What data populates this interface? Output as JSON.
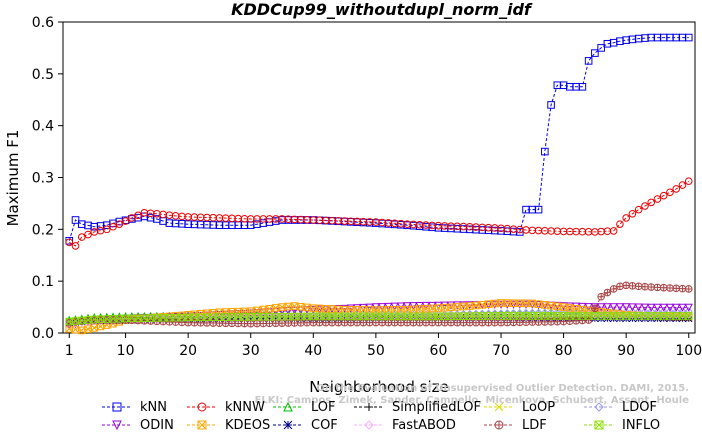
{
  "chart_data": {
    "type": "line",
    "title": "KDDCup99_withoutdupl_norm_idf",
    "xlabel": "Neighborhood size",
    "ylabel": "Maximum F1",
    "xlim": [
      0,
      101
    ],
    "ylim": [
      0,
      0.6
    ],
    "x_ticks": [
      "1",
      "10",
      "20",
      "30",
      "40",
      "50",
      "60",
      "70",
      "80",
      "90",
      "100"
    ],
    "y_ticks": [
      "0.0",
      "0.1",
      "0.2",
      "0.3",
      "0.4",
      "0.5",
      "0.6"
    ],
    "watermark": [
      "ELKI: Campos, Zimek, Sander, Campello, Micenkova, Schubert, Assent, Houle",
      "On the Evaluation of Unsupervised Outlier Detection. DAMI, 2015."
    ],
    "series": [
      {
        "name": "kNN",
        "color": "#0000ee",
        "marker": "square",
        "points": [
          [
            1,
            0.178
          ],
          [
            2,
            0.218
          ],
          [
            3,
            0.21
          ],
          [
            5,
            0.205
          ],
          [
            7,
            0.208
          ],
          [
            9,
            0.215
          ],
          [
            11,
            0.22
          ],
          [
            13,
            0.225
          ],
          [
            15,
            0.22
          ],
          [
            17,
            0.212
          ],
          [
            20,
            0.21
          ],
          [
            25,
            0.208
          ],
          [
            30,
            0.208
          ],
          [
            32,
            0.212
          ],
          [
            35,
            0.218
          ],
          [
            40,
            0.218
          ],
          [
            45,
            0.215
          ],
          [
            50,
            0.212
          ],
          [
            55,
            0.208
          ],
          [
            60,
            0.203
          ],
          [
            65,
            0.2
          ],
          [
            70,
            0.197
          ],
          [
            73,
            0.195
          ],
          [
            74,
            0.238
          ],
          [
            76,
            0.238
          ],
          [
            77,
            0.35
          ],
          [
            78,
            0.44
          ],
          [
            79,
            0.478
          ],
          [
            80,
            0.478
          ],
          [
            81,
            0.475
          ],
          [
            83,
            0.475
          ],
          [
            84,
            0.525
          ],
          [
            85,
            0.54
          ],
          [
            86,
            0.55
          ],
          [
            87,
            0.558
          ],
          [
            88,
            0.56
          ],
          [
            89,
            0.563
          ],
          [
            90,
            0.565
          ],
          [
            92,
            0.568
          ],
          [
            94,
            0.57
          ],
          [
            96,
            0.57
          ],
          [
            100,
            0.57
          ]
        ]
      },
      {
        "name": "kNNW",
        "color": "#ee0000",
        "marker": "circle",
        "points": [
          [
            1,
            0.175
          ],
          [
            2,
            0.168
          ],
          [
            3,
            0.185
          ],
          [
            5,
            0.195
          ],
          [
            7,
            0.2
          ],
          [
            9,
            0.21
          ],
          [
            11,
            0.222
          ],
          [
            13,
            0.232
          ],
          [
            15,
            0.23
          ],
          [
            18,
            0.226
          ],
          [
            20,
            0.224
          ],
          [
            25,
            0.222
          ],
          [
            30,
            0.22
          ],
          [
            35,
            0.22
          ],
          [
            40,
            0.218
          ],
          [
            45,
            0.216
          ],
          [
            50,
            0.214
          ],
          [
            55,
            0.21
          ],
          [
            60,
            0.207
          ],
          [
            65,
            0.205
          ],
          [
            70,
            0.202
          ],
          [
            75,
            0.198
          ],
          [
            80,
            0.196
          ],
          [
            85,
            0.195
          ],
          [
            88,
            0.197
          ],
          [
            89,
            0.21
          ],
          [
            90,
            0.222
          ],
          [
            92,
            0.238
          ],
          [
            94,
            0.252
          ],
          [
            96,
            0.265
          ],
          [
            98,
            0.278
          ],
          [
            100,
            0.293
          ]
        ]
      },
      {
        "name": "LOF",
        "color": "#00bb00",
        "marker": "triangle",
        "points": [
          [
            1,
            0.025
          ],
          [
            5,
            0.03
          ],
          [
            10,
            0.032
          ],
          [
            20,
            0.033
          ],
          [
            30,
            0.034
          ],
          [
            40,
            0.035
          ],
          [
            50,
            0.035
          ],
          [
            60,
            0.036
          ],
          [
            70,
            0.036
          ],
          [
            80,
            0.037
          ],
          [
            90,
            0.036
          ],
          [
            100,
            0.036
          ]
        ]
      },
      {
        "name": "SimplifiedLOF",
        "color": "#000000",
        "marker": "plus",
        "points": [
          [
            1,
            0.022
          ],
          [
            5,
            0.026
          ],
          [
            10,
            0.028
          ],
          [
            20,
            0.028
          ],
          [
            30,
            0.029
          ],
          [
            40,
            0.029
          ],
          [
            50,
            0.029
          ],
          [
            60,
            0.03
          ],
          [
            70,
            0.03
          ],
          [
            80,
            0.03
          ],
          [
            90,
            0.03
          ],
          [
            100,
            0.03
          ]
        ]
      },
      {
        "name": "LoOP",
        "color": "#dddd00",
        "marker": "x",
        "points": [
          [
            1,
            0.02
          ],
          [
            5,
            0.025
          ],
          [
            10,
            0.028
          ],
          [
            20,
            0.03
          ],
          [
            30,
            0.031
          ],
          [
            40,
            0.032
          ],
          [
            50,
            0.032
          ],
          [
            60,
            0.033
          ],
          [
            70,
            0.033
          ],
          [
            80,
            0.033
          ],
          [
            90,
            0.033
          ],
          [
            100,
            0.033
          ]
        ]
      },
      {
        "name": "LDOF",
        "color": "#9999ee",
        "marker": "diamond",
        "points": [
          [
            1,
            0.02
          ],
          [
            5,
            0.024
          ],
          [
            10,
            0.027
          ],
          [
            20,
            0.029
          ],
          [
            30,
            0.031
          ],
          [
            40,
            0.033
          ],
          [
            50,
            0.034
          ],
          [
            60,
            0.036
          ],
          [
            70,
            0.038
          ],
          [
            80,
            0.04
          ],
          [
            90,
            0.041
          ],
          [
            100,
            0.042
          ]
        ]
      },
      {
        "name": "ODIN",
        "color": "#9900dd",
        "marker": "triangle-down",
        "points": [
          [
            1,
            0.015
          ],
          [
            3,
            0.02
          ],
          [
            5,
            0.025
          ],
          [
            10,
            0.028
          ],
          [
            15,
            0.03
          ],
          [
            20,
            0.032
          ],
          [
            25,
            0.035
          ],
          [
            30,
            0.038
          ],
          [
            35,
            0.042
          ],
          [
            40,
            0.045
          ],
          [
            45,
            0.047
          ],
          [
            50,
            0.05
          ],
          [
            55,
            0.052
          ],
          [
            60,
            0.053
          ],
          [
            65,
            0.054
          ],
          [
            70,
            0.055
          ],
          [
            75,
            0.055
          ],
          [
            80,
            0.052
          ],
          [
            85,
            0.05
          ],
          [
            90,
            0.05
          ],
          [
            95,
            0.049
          ],
          [
            100,
            0.049
          ]
        ]
      },
      {
        "name": "KDEOS",
        "color": "#ffa500",
        "marker": "square-x",
        "points": [
          [
            1,
            0.008
          ],
          [
            3,
            0.005
          ],
          [
            5,
            0.01
          ],
          [
            8,
            0.018
          ],
          [
            10,
            0.025
          ],
          [
            15,
            0.03
          ],
          [
            20,
            0.035
          ],
          [
            25,
            0.04
          ],
          [
            30,
            0.042
          ],
          [
            35,
            0.05
          ],
          [
            37,
            0.052
          ],
          [
            40,
            0.048
          ],
          [
            45,
            0.045
          ],
          [
            50,
            0.044
          ],
          [
            55,
            0.045
          ],
          [
            60,
            0.048
          ],
          [
            65,
            0.052
          ],
          [
            70,
            0.058
          ],
          [
            75,
            0.057
          ],
          [
            80,
            0.05
          ],
          [
            85,
            0.042
          ],
          [
            90,
            0.035
          ],
          [
            95,
            0.032
          ],
          [
            100,
            0.03
          ]
        ]
      },
      {
        "name": "COF",
        "color": "#000088",
        "marker": "star",
        "points": [
          [
            1,
            0.02
          ],
          [
            5,
            0.024
          ],
          [
            10,
            0.025
          ],
          [
            20,
            0.026
          ],
          [
            30,
            0.027
          ],
          [
            40,
            0.027
          ],
          [
            50,
            0.028
          ],
          [
            60,
            0.028
          ],
          [
            70,
            0.028
          ],
          [
            80,
            0.028
          ],
          [
            90,
            0.028
          ],
          [
            100,
            0.028
          ]
        ]
      },
      {
        "name": "FastABOD",
        "color": "#ffaaff",
        "marker": "diamond",
        "points": [
          [
            1,
            0.018
          ],
          [
            5,
            0.022
          ],
          [
            10,
            0.025
          ],
          [
            20,
            0.028
          ],
          [
            30,
            0.03
          ],
          [
            40,
            0.032
          ],
          [
            50,
            0.033
          ],
          [
            60,
            0.034
          ],
          [
            70,
            0.034
          ],
          [
            80,
            0.035
          ],
          [
            90,
            0.035
          ],
          [
            100,
            0.035
          ]
        ]
      },
      {
        "name": "LDF",
        "color": "#aa4444",
        "marker": "circle-plus",
        "points": [
          [
            1,
            0.02
          ],
          [
            5,
            0.025
          ],
          [
            10,
            0.025
          ],
          [
            20,
            0.02
          ],
          [
            30,
            0.018
          ],
          [
            40,
            0.02
          ],
          [
            50,
            0.02
          ],
          [
            60,
            0.02
          ],
          [
            70,
            0.02
          ],
          [
            80,
            0.022
          ],
          [
            84,
            0.025
          ],
          [
            86,
            0.07
          ],
          [
            87,
            0.078
          ],
          [
            88,
            0.085
          ],
          [
            89,
            0.09
          ],
          [
            90,
            0.092
          ],
          [
            92,
            0.09
          ],
          [
            95,
            0.088
          ],
          [
            100,
            0.085
          ]
        ]
      },
      {
        "name": "INFLO",
        "color": "#88dd00",
        "marker": "square-x",
        "points": [
          [
            1,
            0.022
          ],
          [
            5,
            0.026
          ],
          [
            10,
            0.028
          ],
          [
            20,
            0.03
          ],
          [
            30,
            0.031
          ],
          [
            40,
            0.032
          ],
          [
            50,
            0.032
          ],
          [
            60,
            0.032
          ],
          [
            70,
            0.033
          ],
          [
            80,
            0.033
          ],
          [
            90,
            0.033
          ],
          [
            100,
            0.033
          ]
        ]
      }
    ]
  }
}
